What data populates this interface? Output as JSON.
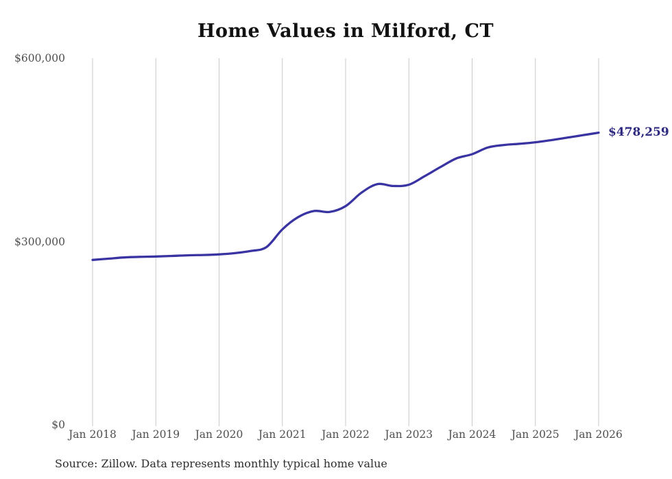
{
  "chart_data": {
    "type": "line",
    "title": "Home Values in Milford, CT",
    "xlabel": "",
    "ylabel": "",
    "ylim": [
      0,
      600000
    ],
    "grid": "vertical-only",
    "legend": "none",
    "line_color": "#3a34a3",
    "gridline_color": "#c9c9c9",
    "end_label": "$478,259",
    "end_label_color": "#2d2a80",
    "source": "Source: Zillow. Data represents monthly typical home value",
    "y_ticks": [
      {
        "label": "$0",
        "value": 0
      },
      {
        "label": "$300,000",
        "value": 300000
      },
      {
        "label": "$600,000",
        "value": 600000
      }
    ],
    "x_ticks": [
      "Jan 2018",
      "Jan 2019",
      "Jan 2020",
      "Jan 2021",
      "Jan 2022",
      "Jan 2023",
      "Jan 2024",
      "Jan 2025",
      "Jan 2026"
    ],
    "series": [
      {
        "name": "Typical home value",
        "points": [
          {
            "date": "2018-01",
            "value": 270000
          },
          {
            "date": "2018-04",
            "value": 272000
          },
          {
            "date": "2018-07",
            "value": 274000
          },
          {
            "date": "2018-10",
            "value": 275000
          },
          {
            "date": "2019-01",
            "value": 275500
          },
          {
            "date": "2019-04",
            "value": 276500
          },
          {
            "date": "2019-07",
            "value": 277500
          },
          {
            "date": "2019-10",
            "value": 278000
          },
          {
            "date": "2020-01",
            "value": 279000
          },
          {
            "date": "2020-04",
            "value": 281000
          },
          {
            "date": "2020-07",
            "value": 284500
          },
          {
            "date": "2020-10",
            "value": 291000
          },
          {
            "date": "2021-01",
            "value": 320000
          },
          {
            "date": "2021-04",
            "value": 340000
          },
          {
            "date": "2021-07",
            "value": 350000
          },
          {
            "date": "2021-10",
            "value": 348500
          },
          {
            "date": "2022-01",
            "value": 358000
          },
          {
            "date": "2022-04",
            "value": 380000
          },
          {
            "date": "2022-07",
            "value": 394000
          },
          {
            "date": "2022-10",
            "value": 391000
          },
          {
            "date": "2023-01",
            "value": 393000
          },
          {
            "date": "2023-04",
            "value": 407000
          },
          {
            "date": "2023-07",
            "value": 422000
          },
          {
            "date": "2023-10",
            "value": 436000
          },
          {
            "date": "2024-01",
            "value": 443000
          },
          {
            "date": "2024-04",
            "value": 454000
          },
          {
            "date": "2024-07",
            "value": 458000
          },
          {
            "date": "2024-10",
            "value": 460000
          },
          {
            "date": "2025-01",
            "value": 462500
          },
          {
            "date": "2025-04",
            "value": 466000
          },
          {
            "date": "2025-07",
            "value": 470000
          },
          {
            "date": "2025-10",
            "value": 474000
          },
          {
            "date": "2026-01",
            "value": 478259
          }
        ]
      }
    ]
  }
}
